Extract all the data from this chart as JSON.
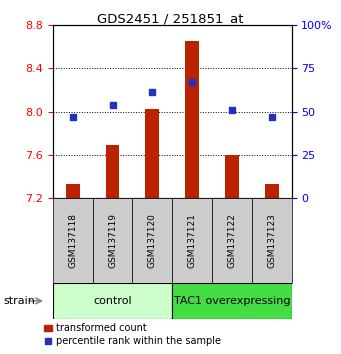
{
  "title": "GDS2451 / 251851_at",
  "categories": [
    "GSM137118",
    "GSM137119",
    "GSM137120",
    "GSM137121",
    "GSM137122",
    "GSM137123"
  ],
  "bar_values": [
    7.33,
    7.69,
    8.02,
    8.65,
    7.6,
    7.33
  ],
  "bar_bottom": 7.2,
  "percentile_values": [
    47,
    54,
    61,
    67,
    51,
    47
  ],
  "left_ylim": [
    7.2,
    8.8
  ],
  "right_ylim": [
    0,
    100
  ],
  "left_yticks": [
    7.2,
    7.6,
    8.0,
    8.4,
    8.8
  ],
  "right_yticks": [
    0,
    25,
    50,
    75,
    100
  ],
  "right_yticklabels": [
    "0",
    "25",
    "50",
    "75",
    "100%"
  ],
  "bar_color": "#bb2200",
  "dot_color": "#2233bb",
  "control_group": [
    0,
    1,
    2
  ],
  "tac1_group": [
    3,
    4,
    5
  ],
  "control_label": "control",
  "tac1_label": "TAC1 overexpressing",
  "strain_label": "strain",
  "legend_bar_label": "transformed count",
  "legend_dot_label": "percentile rank within the sample",
  "control_bg": "#ccffcc",
  "tac1_bg": "#44dd44",
  "xticklabel_area_bg": "#cccccc",
  "bar_width": 0.35
}
